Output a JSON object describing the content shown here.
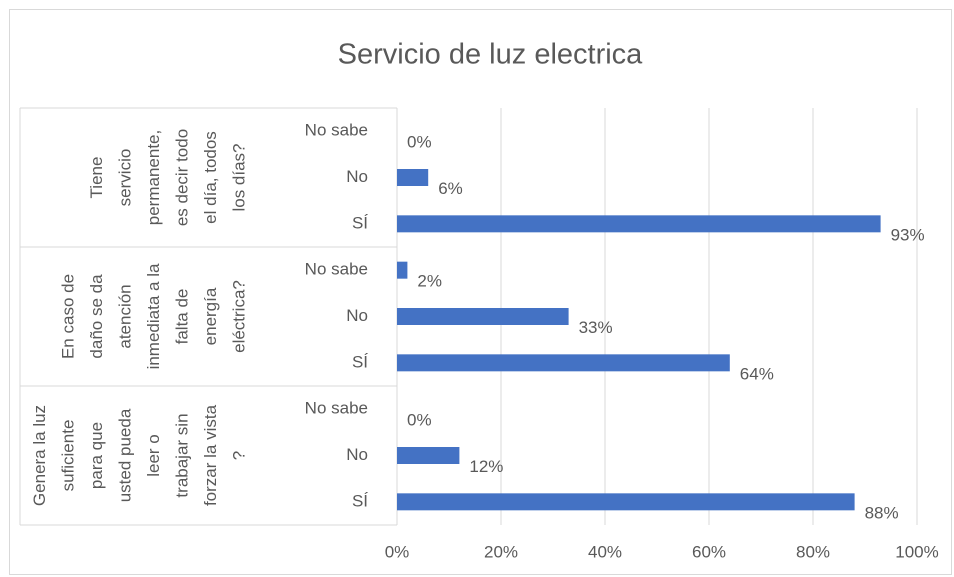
{
  "chart_data": {
    "type": "bar",
    "orientation": "horizontal",
    "title": "Servicio de luz electrica",
    "color": "#4472c4",
    "grid": true,
    "xlim": [
      0,
      100
    ],
    "xticks": [
      {
        "value": 0,
        "label": "0%"
      },
      {
        "value": 20,
        "label": "20%"
      },
      {
        "value": 40,
        "label": "40%"
      },
      {
        "value": 60,
        "label": "60%"
      },
      {
        "value": 80,
        "label": "80%"
      },
      {
        "value": 100,
        "label": "100%"
      }
    ],
    "groups": [
      {
        "label": [
          "Tiene",
          "servicio",
          "permanente,",
          "es decir todo",
          "el día, todos",
          "los días?"
        ],
        "categories": [
          "No sabe",
          "No",
          "SÍ"
        ],
        "values": [
          0,
          6,
          93
        ],
        "value_labels": [
          "0%",
          "6%",
          "93%"
        ]
      },
      {
        "label": [
          "En caso de",
          "daño se da",
          "atención",
          "inmediata a la",
          "falta de",
          "energía",
          "eléctrica?"
        ],
        "categories": [
          "No sabe",
          "No",
          "SÍ"
        ],
        "values": [
          2,
          33,
          64
        ],
        "value_labels": [
          "2%",
          "33%",
          "64%"
        ]
      },
      {
        "label": [
          "Genera la luz",
          "suficiente",
          "para que",
          "usted pueda",
          "leer o",
          "trabajar sin",
          "forzar la vista",
          "?"
        ],
        "categories": [
          "No sabe",
          "No",
          "SÍ"
        ],
        "values": [
          0,
          12,
          88
        ],
        "value_labels": [
          "0%",
          "12%",
          "88%"
        ]
      }
    ]
  }
}
